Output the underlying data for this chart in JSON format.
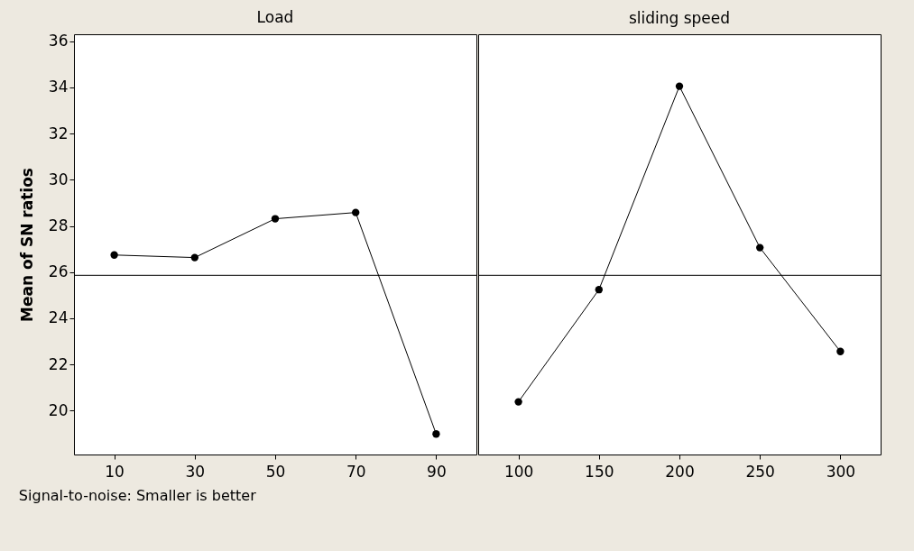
{
  "chart_data": [
    {
      "type": "line",
      "title": "Load",
      "ylabel": "Mean of SN ratios",
      "categories": [
        "10",
        "30",
        "50",
        "70",
        "90"
      ],
      "series": [
        {
          "color": "#000000",
          "values": [
            26.74,
            26.63,
            28.31,
            28.58,
            18.99
          ]
        }
      ],
      "ylim": [
        18.1,
        36.3
      ],
      "yticks": [
        20,
        22,
        24,
        26,
        28,
        30,
        32,
        34,
        36
      ],
      "marker": "circle",
      "line_style": "solid",
      "ref_lines": [
        {
          "axis": "y",
          "value": 25.86,
          "color": "#000000"
        }
      ],
      "annotations": [
        "Signal-to-noise: Smaller is better"
      ]
    },
    {
      "type": "line",
      "title": "sliding speed",
      "categories": [
        "100",
        "150",
        "200",
        "250",
        "300"
      ],
      "series": [
        {
          "color": "#000000",
          "values": [
            20.38,
            25.24,
            34.05,
            27.06,
            22.56
          ]
        }
      ],
      "ylim": [
        18.1,
        36.3
      ],
      "yticks": [
        20,
        22,
        24,
        26,
        28,
        30,
        32,
        34,
        36
      ],
      "marker": "circle",
      "line_style": "solid",
      "tick_labels": "x",
      "ref_lines": [
        {
          "axis": "y",
          "value": 25.86,
          "color": "#000000"
        }
      ]
    }
  ]
}
